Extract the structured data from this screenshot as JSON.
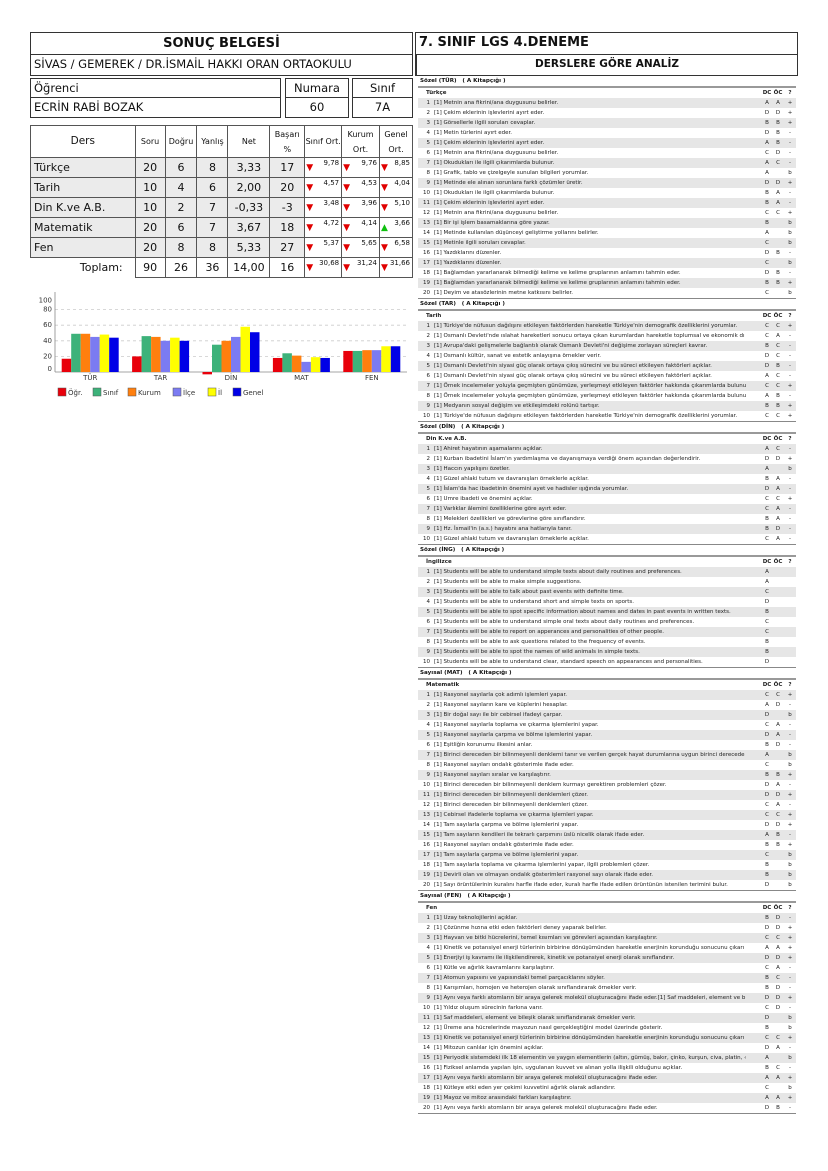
{
  "left": {
    "title": "SONUÇ BELGESİ",
    "school": "SİVAS / GEMEREK / DR.İSMAİL HAKKI ORAN ORTAOKULU",
    "student_label": "Öğrenci",
    "student_name": "ECRİN RABİ BOZAK",
    "number_label": "Numara",
    "number": "60",
    "class_label": "Sınıf",
    "class": "7A",
    "table": {
      "headers": [
        "Ders",
        "Soru",
        "Doğru",
        "Yanlış",
        "Net",
        "Başarı %",
        "Sınıf Ort.",
        "Kurum Ort.",
        "Genel Ort."
      ],
      "rows": [
        {
          "ders": "Türkçe",
          "soru": "20",
          "dogru": "6",
          "yanlis": "8",
          "net": "3,33",
          "basari": "17",
          "sinif": {
            "v": "9,78",
            "t": "down"
          },
          "kurum": {
            "v": "9,76",
            "t": "down"
          },
          "genel": {
            "v": "8,85",
            "t": "down"
          }
        },
        {
          "ders": "Tarih",
          "soru": "10",
          "dogru": "4",
          "yanlis": "6",
          "net": "2,00",
          "basari": "20",
          "sinif": {
            "v": "4,57",
            "t": "down"
          },
          "kurum": {
            "v": "4,53",
            "t": "down"
          },
          "genel": {
            "v": "4,04",
            "t": "down"
          }
        },
        {
          "ders": "Din K.ve A.B.",
          "soru": "10",
          "dogru": "2",
          "yanlis": "7",
          "net": "-0,33",
          "basari": "-3",
          "sinif": {
            "v": "3,48",
            "t": "down"
          },
          "kurum": {
            "v": "3,96",
            "t": "down"
          },
          "genel": {
            "v": "5,10",
            "t": "down"
          }
        },
        {
          "ders": "Matematik",
          "soru": "20",
          "dogru": "6",
          "yanlis": "7",
          "net": "3,67",
          "basari": "18",
          "sinif": {
            "v": "4,72",
            "t": "down"
          },
          "kurum": {
            "v": "4,14",
            "t": "down"
          },
          "genel": {
            "v": "3,66",
            "t": "up"
          }
        },
        {
          "ders": "Fen",
          "soru": "20",
          "dogru": "8",
          "yanlis": "8",
          "net": "5,33",
          "basari": "27",
          "sinif": {
            "v": "5,37",
            "t": "down"
          },
          "kurum": {
            "v": "5,65",
            "t": "down"
          },
          "genel": {
            "v": "6,58",
            "t": "down"
          }
        }
      ],
      "total": {
        "ders": "Toplam:",
        "soru": "90",
        "dogru": "26",
        "yanlis": "36",
        "net": "14,00",
        "basari": "16",
        "sinif": {
          "v": "30,68",
          "t": "down"
        },
        "kurum": {
          "v": "31,24",
          "t": "down"
        },
        "genel": {
          "v": "31,66",
          "t": "down"
        }
      }
    }
  },
  "chart_data": {
    "type": "bar",
    "categories": [
      "TÜR",
      "TAR",
      "DİN",
      "MAT",
      "FEN"
    ],
    "yticks": [
      "0",
      "20",
      "40",
      "60",
      "80",
      "100"
    ],
    "ylim": [
      0,
      100
    ],
    "grid": true,
    "legend": "bottom-left",
    "series": [
      {
        "name": "Öğr.",
        "color": "#e8000b",
        "values": [
          17,
          20,
          -3,
          18,
          27
        ]
      },
      {
        "name": "Sınıf",
        "color": "#3db27a",
        "values": [
          49,
          46,
          35,
          24,
          27
        ]
      },
      {
        "name": "Kurum",
        "color": "#ff7f0e",
        "values": [
          49,
          45,
          40,
          21,
          28
        ]
      },
      {
        "name": "İlçe",
        "color": "#7b7bf2",
        "values": [
          45,
          40,
          45,
          13,
          28
        ]
      },
      {
        "name": "İl",
        "color": "#ffff00",
        "values": [
          48,
          44,
          58,
          19,
          33
        ]
      },
      {
        "name": "Genel",
        "color": "#0000e6",
        "values": [
          44,
          40,
          51,
          18,
          33
        ]
      }
    ]
  },
  "right": {
    "title": "7. SINIF LGS 4.DENEME",
    "analysis_title": "DERSLERE GÖRE ANALİZ",
    "col_dc": "DC",
    "col_oc": "ÖC",
    "col_q": "?",
    "sections": [
      {
        "label": "Sözel (TÜR)   ( A Kitapçığı )",
        "subject": "Türkçe",
        "rows": [
          [
            "[1] Metnin ana fikrini/ana duygusunu belirler.",
            "A",
            "A",
            "+"
          ],
          [
            "[1] Çekim eklerinin işlevlerini ayırt eder.",
            "D",
            "D",
            "+"
          ],
          [
            "[1] Görsellerle ilgili soruları cevaplar.",
            "B",
            "B",
            "+"
          ],
          [
            "[1] Metin türlerini ayırt eder.",
            "D",
            "B",
            "-"
          ],
          [
            "[1] Çekim eklerinin işlevlerini ayırt eder.",
            "A",
            "B",
            "-"
          ],
          [
            "[1] Metnin ana fikrini/ana duygusunu belirler.",
            "C",
            "D",
            "-"
          ],
          [
            "[1] Okudukları ile ilgili çıkarımlarda bulunur.",
            "A",
            "C",
            "-"
          ],
          [
            "[1] Grafik, tablo ve çizelgeyle sunulan bilgileri yorumlar.",
            "A",
            "",
            "b"
          ],
          [
            "[1] Metinde ele alınan sorunlara farklı çözümler üretir.",
            "D",
            "D",
            "+"
          ],
          [
            "[1] Okudukları ile ilgili çıkarımlarda bulunur.",
            "B",
            "A",
            "-"
          ],
          [
            "[1] Çekim eklerinin işlevlerini ayırt eder.",
            "B",
            "A",
            "-"
          ],
          [
            "[1] Metnin ana fikrini/ana duygusunu belirler.",
            "C",
            "C",
            "+"
          ],
          [
            "[1] Bir işi işlem basamaklarına göre yazar.",
            "B",
            "",
            "b"
          ],
          [
            "[1] Metinde kullanılan düşünceyi geliştirme yollarını belirler.",
            "A",
            "",
            "b"
          ],
          [
            "[1] Metinle ilgili soruları cevaplar.",
            "C",
            "",
            "b"
          ],
          [
            "[1] Yazdıklarını düzenler.",
            "D",
            "B",
            "-"
          ],
          [
            "[1] Yazdıklarını düzenler.",
            "C",
            "",
            "b"
          ],
          [
            "[1] Bağlamdan yararlanarak bilmediği kelime ve kelime gruplarının anlamını tahmin eder.",
            "D",
            "B",
            "-"
          ],
          [
            "[1] Bağlamdan yararlanarak bilmediği kelime ve kelime gruplarının anlamını tahmin eder.",
            "B",
            "B",
            "+"
          ],
          [
            "[1] Deyim ve atasözlerinin metne katkısını belirler.",
            "C",
            "",
            "b"
          ]
        ]
      },
      {
        "label": "Sözel (TAR)   ( A Kitapçığı )",
        "subject": "Tarih",
        "rows": [
          [
            "[1] Türkiye'de nüfusun dağılışını etkileyen faktörlerden hareketle Türkiye'nin demografik özelliklerini yorumlar.",
            "C",
            "C",
            "+"
          ],
          [
            "[1] Osmanlı Devleti'nde ıslahat hareketleri sonucu ortaya çıkan kurumlardan hareketle toplumsal ve ekonomik dı",
            "C",
            "A",
            "-"
          ],
          [
            "[1] Avrupa'daki gelişmelerle bağlantılı olarak Osmanlı Devleti'ni değişime zorlayan süreçleri kavrar.",
            "B",
            "C",
            "-"
          ],
          [
            "[1] Osmanlı kültür, sanat ve estetik anlayışına örnekler verir.",
            "D",
            "C",
            "-"
          ],
          [
            "[1] Osmanlı Devleti'nin siyasi güç olarak ortaya çıkış sürecini ve bu süreci etkileyen faktörleri açıklar.",
            "D",
            "B",
            "-"
          ],
          [
            "[1] Osmanlı Devleti'nin siyasi güç olarak ortaya çıkış sürecini ve bu süreci etkileyen faktörleri açıklar.",
            "A",
            "C",
            "-"
          ],
          [
            "[1] Örnek incelemeler yoluyla geçmişten günümüze, yerleşmeyi etkileyen faktörler hakkında çıkarımlarda bulunu",
            "C",
            "C",
            "+"
          ],
          [
            "[1] Örnek incelemeler yoluyla geçmişten günümüze, yerleşmeyi etkileyen faktörler hakkında çıkarımlarda bulunu",
            "A",
            "B",
            "-"
          ],
          [
            "[1] Medyanın sosyal değişim ve etkileşimdeki rolünü tartışır.",
            "B",
            "B",
            "+"
          ],
          [
            "[1] Türkiye'de nüfusun dağılışını etkileyen faktörlerden hareketle Türkiye'nin demografik özelliklerini yorumlar.",
            "C",
            "C",
            "+"
          ]
        ]
      },
      {
        "label": "Sözel (DİN)   ( A Kitapçığı )",
        "subject": "Din K.ve A.B.",
        "rows": [
          [
            "[1] Ahiret hayatının aşamalarını açıklar.",
            "A",
            "C",
            "-"
          ],
          [
            "[1] Kurban ibadetini İslam'ın yardımlaşma ve dayanışmaya verdiği önem açısından değerlendirir.",
            "D",
            "D",
            "+"
          ],
          [
            "[1] Haccın yapılışını özetler.",
            "A",
            "",
            "b"
          ],
          [
            "[1] Güzel ahlaki tutum ve davranışları örneklerle açıklar.",
            "B",
            "A",
            "-"
          ],
          [
            "[1] İslam'da hac ibadetinin önemini ayet ve hadisler ışığında yorumlar.",
            "D",
            "A",
            "-"
          ],
          [
            "[1] Umre ibadeti ve önemini açıklar.",
            "C",
            "C",
            "+"
          ],
          [
            "[1] Varlıklar âlemini özelliklerine göre ayırt eder.",
            "C",
            "A",
            "-"
          ],
          [
            "[1] Melekleri özellikleri ve görevlerine göre sınıflandırır.",
            "B",
            "A",
            "-"
          ],
          [
            "[1] Hz. İsmail'in (a.s.) hayatını ana hatlarıyla tanır.",
            "B",
            "D",
            "-"
          ],
          [
            "[1] Güzel ahlaki tutum ve davranışları örneklerle açıklar.",
            "C",
            "A",
            "-"
          ]
        ]
      },
      {
        "label": "Sözel (İNG)   ( A Kitapçığı )",
        "subject": "İngilizce",
        "rows": [
          [
            "[1] Students will be able to understand simple texts about daily routines and preferences.",
            "A",
            "",
            ""
          ],
          [
            "[1] Students will be able to make simple suggestions.",
            "A",
            "",
            ""
          ],
          [
            "[1] Students will be able to talk about past events with definite time.",
            "C",
            "",
            ""
          ],
          [
            "[1] Students will be able to understand short and simple texts on sports.",
            "D",
            "",
            ""
          ],
          [
            "[1] Students will be able to spot specific information about names and dates in past events in written texts.",
            "B",
            "",
            ""
          ],
          [
            "[1] Students will be able to understand simple oral texts about daily routines and preferences.",
            "C",
            "",
            ""
          ],
          [
            "[1] Students will be able to report on apperances and personalities of other people.",
            "C",
            "",
            ""
          ],
          [
            "[1] Students will be able to ask questions related to the frequency of events.",
            "B",
            "",
            ""
          ],
          [
            "[1] Students will be able to spot the names of wild animals in simple texts.",
            "B",
            "",
            ""
          ],
          [
            "[1] Students will be able to understand clear, standard speech on appearances and personalities.",
            "D",
            "",
            ""
          ]
        ]
      },
      {
        "label": "Sayısal (MAT)   ( A Kitapçığı )",
        "subject": "Matematik",
        "rows": [
          [
            "[1] Rasyonel sayılarla çok adımlı işlemleri yapar.",
            "C",
            "C",
            "+"
          ],
          [
            "[1] Rasyonel sayıların kare ve küplerini hesaplar.",
            "A",
            "D",
            "-"
          ],
          [
            "[1] Bir doğal sayı ile bir cebirsel ifadeyi çarpar.",
            "D",
            "",
            "b"
          ],
          [
            "[1] Rasyonel sayılarla toplama ve çıkarma işlemlerini yapar.",
            "C",
            "A",
            "-"
          ],
          [
            "[1] Rasyonel sayılarla çarpma ve bölme işlemlerini yapar.",
            "D",
            "A",
            "-"
          ],
          [
            "[1] Eşitliğin korunumu ilkesini anlar.",
            "B",
            "D",
            "-"
          ],
          [
            "[1] Birinci dereceden bir bilinmeyenli denklemi tanır ve verilen gerçek hayat durumlarına uygun birinci derecede",
            "A",
            "",
            "b"
          ],
          [
            "[1] Rasyonel sayıları ondalık gösterimle ifade eder.",
            "C",
            "",
            "b"
          ],
          [
            "[1] Rasyonel sayıları sıralar ve karşılaştırır.",
            "B",
            "B",
            "+"
          ],
          [
            "[1] Birinci dereceden bir bilinmeyenli denklem kurmayı gerektiren problemleri çözer.",
            "D",
            "A",
            "-"
          ],
          [
            "[1] Birinci dereceden bir bilinmeyenli denklemleri çözer.",
            "D",
            "D",
            "+"
          ],
          [
            "[1] Birinci dereceden bir bilinmeyenli denklemleri çözer.",
            "C",
            "A",
            "-"
          ],
          [
            "[1] Cebirsel ifadelerle toplama ve çıkarma işlemleri yapar.",
            "C",
            "C",
            "+"
          ],
          [
            "[1] Tam sayılarla çarpma ve bölme işlemlerini yapar.",
            "D",
            "D",
            "+"
          ],
          [
            "[1] Tam sayıların kendileri ile tekrarlı çarpımını üslü nicelik olarak ifade eder.",
            "A",
            "B",
            "-"
          ],
          [
            "[1] Rasyonel sayıları ondalık gösterimle ifade eder.",
            "B",
            "B",
            "+"
          ],
          [
            "[1] Tam sayılarla çarpma ve bölme işlemlerini yapar.",
            "C",
            "",
            "b"
          ],
          [
            "[1] Tam sayılarla toplama ve çıkarma işlemlerini yapar, ilgili problemleri çözer.",
            "B",
            "",
            "b"
          ],
          [
            "[1] Devirli olan ve olmayan ondalık gösterimleri rasyonel sayı olarak ifade eder.",
            "B",
            "",
            "b"
          ],
          [
            "[1] Sayı örüntülerinin kuralını harfle ifade eder, kuralı harfle ifade edilen örüntünün istenilen terimini bulur.",
            "D",
            "",
            "b"
          ]
        ]
      },
      {
        "label": "Sayısal (FEN)   ( A Kitapçığı )",
        "subject": "Fen",
        "rows": [
          [
            "[1] Uzay teknolojilerini açıklar.",
            "B",
            "D",
            "-"
          ],
          [
            "[1] Çözünme hızına etki eden faktörleri deney yaparak belirler.",
            "D",
            "D",
            "+"
          ],
          [
            "[1] Hayvan ve bitki hücrelerini, temel kısımları ve görevleri açısından karşılaştırır.",
            "C",
            "C",
            "+"
          ],
          [
            "[1] Kinetik ve potansiyel enerji türlerinin birbirine dönüşümünden hareketle enerjinin korunduğu sonucunu çıkarı",
            "A",
            "A",
            "+"
          ],
          [
            "[1] Enerjiyi iş kavramı ile ilişkilendirerek, kinetik ve potansiyel enerji olarak sınıflandırır.",
            "D",
            "D",
            "+"
          ],
          [
            "[1] Kütle ve ağırlık kavramlarını karşılaştırır.",
            "C",
            "A",
            "-"
          ],
          [
            "[1] Atomun yapısını ve yapısındaki temel parçacıklarını söyler.",
            "B",
            "C",
            "-"
          ],
          [
            "[1] Karışımları, homojen ve heterojen olarak sınıflandırarak örnekler verir.",
            "B",
            "D",
            "-"
          ],
          [
            "[1] Aynı veya farklı atomların bir araya gelerek molekül oluşturacağını ifade eder.[1] Saf maddeleri, element ve b",
            "D",
            "D",
            "+"
          ],
          [
            "[1] Yıldız oluşum sürecinin farkına varır.",
            "C",
            "D",
            "-"
          ],
          [
            "[1] Saf maddeleri, element ve bileşik olarak sınıflandırarak örnekler verir.",
            "D",
            "",
            "b"
          ],
          [
            "[1] Üreme ana hücrelerinde mayozun nasıl gerçekleştiğini model üzerinde gösterir.",
            "B",
            "",
            "b"
          ],
          [
            "[1] Kinetik ve potansiyel enerji türlerinin birbirine dönüşümünden hareketle enerjinin korunduğu sonucunu çıkarı",
            "C",
            "C",
            "+"
          ],
          [
            "[1] Mitozun canlılar için önemini açıklar.",
            "D",
            "A",
            "-"
          ],
          [
            "[1] Periyodik sistemdeki ilk 18 elementin ve yaygın elementlerin (altın, gümüş, bakır, çinko, kurşun, civa, platin, ‹",
            "A",
            "",
            "b"
          ],
          [
            "[1] Fiziksel anlamda yapılan işin, uygulanan kuvvet ve alınan yolla ilişkili olduğunu açıklar.",
            "B",
            "C",
            "-"
          ],
          [
            "[1] Aynı veya farklı atomların bir araya gelerek molekül oluşturacağını ifade eder.",
            "A",
            "A",
            "+"
          ],
          [
            "[1] Kütleye etki eden yer çekimi kuvvetini ağırlık olarak adlandırır.",
            "C",
            "",
            "b"
          ],
          [
            "[1] Mayoz ve mitoz arasındaki farkları karşılaştırır.",
            "A",
            "A",
            "+"
          ],
          [
            "[1] Aynı veya farklı atomların bir araya gelerek molekül oluşturacağını ifade eder.",
            "D",
            "B",
            "-"
          ]
        ]
      }
    ]
  }
}
